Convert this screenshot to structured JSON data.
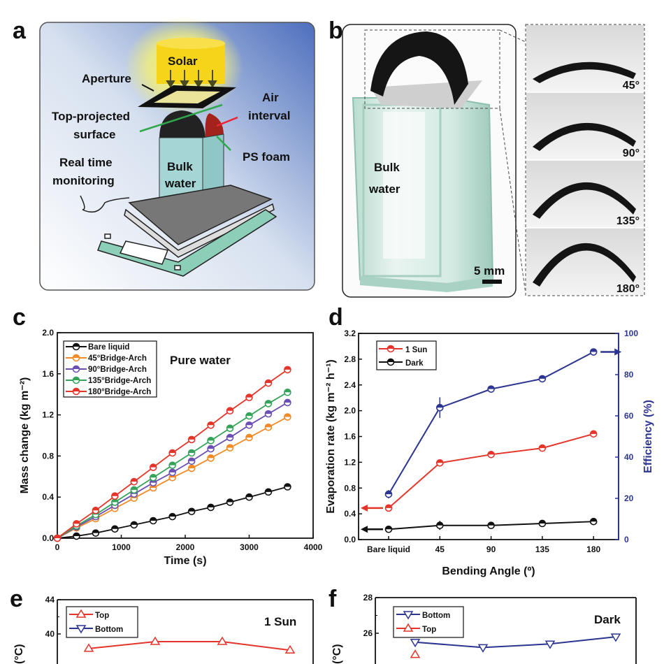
{
  "panel_labels": {
    "a": "a",
    "b": "b",
    "c": "c",
    "d": "d",
    "e": "e",
    "f": "f"
  },
  "panel_a": {
    "solar": "Solar",
    "aperture": "Aperture",
    "top_projected": "Top-projected",
    "surface": "surface",
    "air": "Air",
    "interval": "interval",
    "ps_foam": "PS foam",
    "real_time": "Real time",
    "monitoring": "monitoring",
    "bulk": "Bulk",
    "water": "water"
  },
  "panel_b": {
    "bulk": "Bulk",
    "water": "water",
    "scale_bar": "5 mm",
    "insets": [
      "45°",
      "90°",
      "135°",
      "180°"
    ]
  },
  "colors": {
    "black": "#111111",
    "orange": "#f28a25",
    "purple": "#6b4fb3",
    "green": "#35a35a",
    "red": "#e5352b",
    "navy": "#2c3590"
  },
  "chart_data": [
    {
      "id": "c",
      "type": "line",
      "title": "",
      "annotation": "Pure water",
      "xlabel": "Time (s)",
      "ylabel": "Mass change (kg m⁻²)",
      "xlim": [
        0,
        4000
      ],
      "ylim": [
        0,
        2.0
      ],
      "xticks": [
        "0",
        "1000",
        "2000",
        "3000",
        "4000"
      ],
      "yticks": [
        "0.0",
        "0.4",
        "0.8",
        "1.2",
        "1.6",
        "2.0"
      ],
      "legend_position": "top-left",
      "x": [
        0,
        300,
        600,
        900,
        1200,
        1500,
        1800,
        2100,
        2400,
        2700,
        3000,
        3300,
        3600
      ],
      "series": [
        {
          "name": "Bare liquid",
          "color": "#111111",
          "values": [
            0,
            0.02,
            0.05,
            0.09,
            0.13,
            0.17,
            0.21,
            0.26,
            0.3,
            0.35,
            0.4,
            0.45,
            0.5
          ]
        },
        {
          "name": "45°Bridge-Arch",
          "color": "#f28a25",
          "values": [
            0,
            0.1,
            0.19,
            0.29,
            0.39,
            0.49,
            0.59,
            0.68,
            0.78,
            0.88,
            0.98,
            1.08,
            1.18
          ]
        },
        {
          "name": "90°Bridge-Arch",
          "color": "#6b4fb3",
          "values": [
            0,
            0.11,
            0.21,
            0.32,
            0.43,
            0.54,
            0.64,
            0.75,
            0.87,
            0.98,
            1.1,
            1.21,
            1.32
          ]
        },
        {
          "name": "135°Bridge-Arch",
          "color": "#35a35a",
          "values": [
            0,
            0.12,
            0.23,
            0.35,
            0.47,
            0.59,
            0.71,
            0.83,
            0.95,
            1.07,
            1.19,
            1.31,
            1.42
          ]
        },
        {
          "name": "180°Bridge-Arch",
          "color": "#e5352b",
          "values": [
            0,
            0.14,
            0.27,
            0.41,
            0.55,
            0.69,
            0.83,
            0.96,
            1.1,
            1.24,
            1.37,
            1.51,
            1.64
          ]
        }
      ]
    },
    {
      "id": "d",
      "type": "line",
      "title": "",
      "xlabel": "Bending Angle (º)",
      "ylabel": "Evaporation rate (kg m⁻² h⁻¹)",
      "ylabel_right": "Efficiency (%)",
      "categories": [
        "Bare liquid",
        "45",
        "90",
        "135",
        "180"
      ],
      "ylim": [
        0,
        3.2
      ],
      "ylim_right": [
        0,
        100
      ],
      "yticks": [
        "0.0",
        "0.4",
        "0.8",
        "1.2",
        "1.6",
        "2.0",
        "2.4",
        "2.8",
        "3.2"
      ],
      "yticks_right": [
        "0",
        "20",
        "40",
        "60",
        "80",
        "100"
      ],
      "legend_position": "top-left",
      "series": [
        {
          "name": "1 Sun",
          "axis": "left",
          "color": "#e5352b",
          "values": [
            0.49,
            1.19,
            1.32,
            1.42,
            1.64
          ],
          "errors": [
            0.03,
            0.03,
            0.04,
            0.03,
            0.03
          ]
        },
        {
          "name": "Dark",
          "axis": "left",
          "color": "#111111",
          "values": [
            0.16,
            0.22,
            0.22,
            0.25,
            0.28
          ],
          "errors": [
            0.03,
            0.07,
            0.03,
            0.03,
            0.03
          ]
        },
        {
          "name": "Efficiency",
          "axis": "right",
          "color": "#2c3590",
          "values": [
            22,
            64,
            73,
            78,
            91
          ],
          "errors": [
            2,
            5,
            1,
            1,
            1
          ],
          "in_legend": false
        }
      ]
    },
    {
      "id": "e",
      "type": "line",
      "annotation": "1 Sun",
      "ylabel": "(°C)",
      "ylim": [
        36,
        44
      ],
      "yticks": [
        "40",
        "44"
      ],
      "legend_position": "top-left",
      "series": [
        {
          "name": "Top",
          "color": "#e5352b",
          "marker": "triangle-up",
          "values": [
            38.3,
            39.1,
            39.1,
            38.1
          ]
        },
        {
          "name": "Bottom",
          "color": "#2c3590",
          "marker": "triangle-down",
          "values": []
        }
      ]
    },
    {
      "id": "f",
      "type": "line",
      "annotation": "Dark",
      "ylabel": "(°C)",
      "ylim": [
        22,
        28
      ],
      "yticks": [
        "26",
        "28"
      ],
      "legend_position": "top-left",
      "series": [
        {
          "name": "Bottom",
          "color": "#2c3590",
          "marker": "triangle-down",
          "values": [
            25.5,
            25.2,
            25.4,
            25.8
          ]
        },
        {
          "name": "Top",
          "color": "#e5352b",
          "marker": "triangle-up",
          "values": [
            24.8
          ]
        }
      ]
    }
  ]
}
